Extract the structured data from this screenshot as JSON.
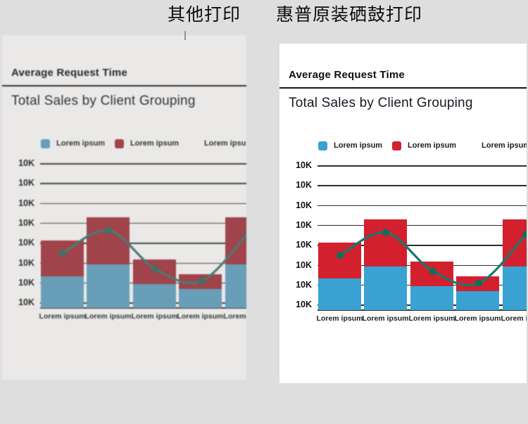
{
  "page": {
    "background": "#dedede"
  },
  "comparison_header": {
    "left_label": "其他打印",
    "right_label": "惠普原装硒鼓打印"
  },
  "chart": {
    "header": "Average Request Time",
    "title": "Total Sales by Client Grouping",
    "legend": [
      {
        "label": "Lorem ipsum",
        "color": "#38a2d4"
      },
      {
        "label": "Lorem ipsum",
        "color": "#d2202f"
      },
      {
        "label": "Lorem ipsum",
        "color": null
      }
    ],
    "colors": {
      "bar_blue": "#3aa2d3",
      "bar_red": "#d2202f",
      "line": "#177a6b",
      "dot": "#0e6e5c",
      "grid": "#2e2e2e",
      "rule": "#161616"
    }
  },
  "chart_data": {
    "type": "combo-stacked-bar-line",
    "title": "Total Sales by Client Grouping",
    "categories": [
      "Lorem ipsum",
      "Lorem ipsum",
      "Lorem ipsum",
      "Lorem ipsum",
      "Lorem ipsum"
    ],
    "y_tick_labels": [
      "10K",
      "10K",
      "10K",
      "10K",
      "10K",
      "10K",
      "10K",
      "10K"
    ],
    "series": [
      {
        "name": "Lorem ipsum (blue, stacked bar bottom)",
        "type": "bar",
        "values": [
          1.6,
          2.2,
          1.2,
          0.95,
          2.2
        ]
      },
      {
        "name": "Lorem ipsum (red, stacked bar top)",
        "type": "bar",
        "values": [
          1.8,
          2.35,
          1.25,
          0.75,
          2.35
        ]
      },
      {
        "name": "Lorem ipsum (teal trend line)",
        "type": "line",
        "values": [
          2.75,
          3.9,
          1.95,
          1.35,
          3.8
        ]
      }
    ],
    "value_unit": "one horizontal gridline step (each tick labeled 10K)",
    "ylim": [
      0,
      7.3
    ],
    "grid": true,
    "legend_position": "top"
  }
}
